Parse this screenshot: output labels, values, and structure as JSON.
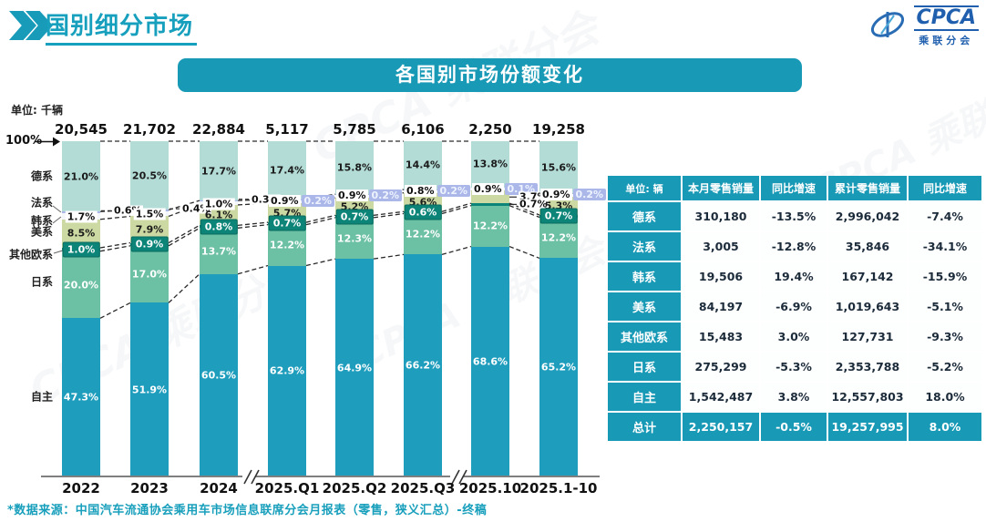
{
  "page": {
    "title": "国别细分市场",
    "source_note": "*数据来源：中国汽车流通协会乘用车市场信息联席分会月报表（零售，狭义汇总）-终稿"
  },
  "logo": {
    "brand": "CPCA",
    "brand_cn": "乘联分会"
  },
  "chart_data": {
    "type": "bar",
    "stacked": true,
    "title": "各国别市场份额变化",
    "unit_note": "单位: 千辆",
    "y_axis_top_label": "100%",
    "categories": [
      "2022",
      "2023",
      "2024",
      "2025.Q1",
      "2025.Q2",
      "2025.Q3",
      "2025.10",
      "2025.1-10"
    ],
    "bar_totals": [
      "20,545",
      "21,702",
      "22,884",
      "5,117",
      "5,785",
      "6,106",
      "2,250",
      "19,258"
    ],
    "series": [
      {
        "id": "german",
        "name": "德系",
        "color": "#b3dcd6",
        "values": [
          21.0,
          20.5,
          17.7,
          17.4,
          15.8,
          14.4,
          13.8,
          15.6
        ]
      },
      {
        "id": "french",
        "name": "法系",
        "color": "#aab7e8",
        "values": [
          0.6,
          0.4,
          0.3,
          0.2,
          0.2,
          0.2,
          0.1,
          0.2
        ]
      },
      {
        "id": "korean",
        "name": "韩系",
        "color": "#f3f6fa",
        "values": [
          1.7,
          1.5,
          1.0,
          0.9,
          0.9,
          0.8,
          0.9,
          0.9
        ]
      },
      {
        "id": "american",
        "name": "美系",
        "color": "#ccd9a2",
        "values": [
          8.5,
          7.9,
          6.1,
          5.7,
          5.2,
          5.6,
          3.7,
          5.3
        ]
      },
      {
        "id": "other-european",
        "name": "其他欧系",
        "color": "#0d8478",
        "values": [
          1.0,
          0.9,
          0.8,
          0.7,
          0.7,
          0.6,
          0.7,
          0.7
        ]
      },
      {
        "id": "japanese",
        "name": "日系",
        "color": "#6cc0a3",
        "values": [
          20.0,
          17.0,
          13.7,
          12.2,
          12.3,
          12.2,
          12.2,
          12.2
        ]
      },
      {
        "id": "domestic",
        "name": "自主",
        "color": "#1f9dbd",
        "values": [
          47.3,
          51.9,
          60.5,
          62.9,
          64.9,
          66.2,
          68.6,
          65.2
        ]
      }
    ],
    "axis_breaks_after": [
      "2024",
      "2025.Q3"
    ],
    "legend_position": "left",
    "grid": false
  },
  "table": {
    "header": [
      "单位: 辆",
      "本月零售销量",
      "同比增速",
      "累计零售销量",
      "同比增速"
    ],
    "rows": [
      [
        "德系",
        "310,180",
        "-13.5%",
        "2,996,042",
        "-7.4%"
      ],
      [
        "法系",
        "3,005",
        "-12.8%",
        "35,846",
        "-34.1%"
      ],
      [
        "韩系",
        "19,506",
        "19.4%",
        "167,142",
        "-15.9%"
      ],
      [
        "美系",
        "84,197",
        "-6.9%",
        "1,019,643",
        "-5.1%"
      ],
      [
        "其他欧系",
        "15,483",
        "3.0%",
        "127,731",
        "-9.3%"
      ],
      [
        "日系",
        "275,299",
        "-5.3%",
        "2,353,788",
        "-5.2%"
      ],
      [
        "自主",
        "1,542,487",
        "3.8%",
        "12,557,803",
        "18.0%"
      ],
      [
        "总计",
        "2,250,157",
        "-0.5%",
        "19,257,995",
        "8.0%"
      ]
    ],
    "total_row_index": 7
  },
  "colors": {
    "accent": "#1899b6",
    "title": "#17a0bd",
    "logo_blue": "#1f5fae"
  }
}
